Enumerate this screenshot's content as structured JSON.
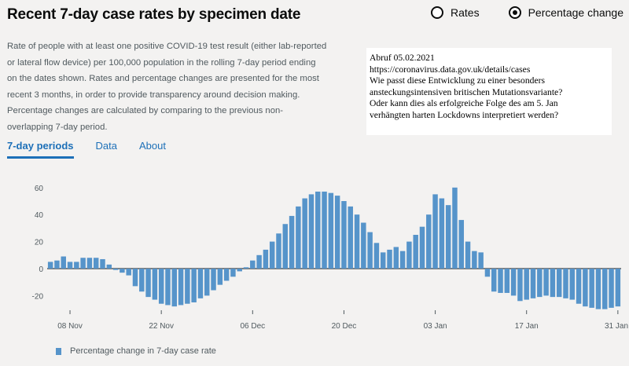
{
  "header": {
    "title": "Recent 7-day case rates by specimen date",
    "radio_options": [
      {
        "label": "Rates",
        "selected": false
      },
      {
        "label": "Percentage change",
        "selected": true
      }
    ]
  },
  "description": [
    "Rate of people with at least one positive COVID-19 test result (either lab-reported",
    "or lateral flow device) per 100,000 population in the rolling 7-day period ending",
    "on the dates shown. Rates and percentage changes are presented for the most",
    "recent 3 months, in order to provide transparency around decision making.",
    "Percentage changes are calculated by comparing to the previous non-",
    "overlapping 7-day period."
  ],
  "note": [
    "Abruf 05.02.2021",
    "https://coronavirus.data.gov.uk/details/cases",
    "Wie passt diese Entwicklung zu einer besonders",
    "ansteckungsintensiven britischen  Mutationsvariante?",
    "Oder kann dies als erfolgreiche Folge des am 5. Jan",
    "verhängten harten Lockdowns interpretiert werden?"
  ],
  "tabs": [
    {
      "label": "7-day periods",
      "active": true
    },
    {
      "label": "Data",
      "active": false
    },
    {
      "label": "About",
      "active": false
    }
  ],
  "colors": {
    "bar": "#5694ca",
    "accent": "#1d70b8"
  },
  "chart_data": {
    "type": "bar",
    "series": [
      {
        "name": "Percentage change in 7-day case rate"
      }
    ],
    "x_tick_labels": [
      "08 Nov",
      "22 Nov",
      "06 Dec",
      "20 Dec",
      "03 Jan",
      "17 Jan",
      "31 Jan"
    ],
    "y_tick_labels": [
      "60",
      "40",
      "20",
      "0",
      "-20"
    ],
    "ylim": [
      -30,
      62
    ],
    "grid": false,
    "legend": "bottom-left",
    "x": [
      "05 Nov",
      "06 Nov",
      "07 Nov",
      "08 Nov",
      "09 Nov",
      "10 Nov",
      "11 Nov",
      "12 Nov",
      "13 Nov",
      "14 Nov",
      "15 Nov",
      "16 Nov",
      "17 Nov",
      "18 Nov",
      "19 Nov",
      "20 Nov",
      "21 Nov",
      "22 Nov",
      "23 Nov",
      "24 Nov",
      "25 Nov",
      "26 Nov",
      "27 Nov",
      "28 Nov",
      "29 Nov",
      "30 Nov",
      "01 Dec",
      "02 Dec",
      "03 Dec",
      "04 Dec",
      "05 Dec",
      "06 Dec",
      "07 Dec",
      "08 Dec",
      "09 Dec",
      "10 Dec",
      "11 Dec",
      "12 Dec",
      "13 Dec",
      "14 Dec",
      "15 Dec",
      "16 Dec",
      "17 Dec",
      "18 Dec",
      "19 Dec",
      "20 Dec",
      "21 Dec",
      "22 Dec",
      "23 Dec",
      "24 Dec",
      "25 Dec",
      "26 Dec",
      "27 Dec",
      "28 Dec",
      "29 Dec",
      "30 Dec",
      "31 Dec",
      "01 Jan",
      "02 Jan",
      "03 Jan",
      "04 Jan",
      "05 Jan",
      "06 Jan",
      "07 Jan",
      "08 Jan",
      "09 Jan",
      "10 Jan",
      "11 Jan",
      "12 Jan",
      "13 Jan",
      "14 Jan",
      "15 Jan",
      "16 Jan",
      "17 Jan",
      "18 Jan",
      "19 Jan",
      "20 Jan",
      "21 Jan",
      "22 Jan",
      "23 Jan",
      "24 Jan",
      "25 Jan",
      "26 Jan",
      "27 Jan",
      "28 Jan",
      "29 Jan",
      "30 Jan",
      "31 Jan"
    ],
    "values": [
      5,
      6,
      9,
      5,
      5,
      8,
      8,
      8,
      7,
      3,
      -1,
      -3,
      -5,
      -13,
      -17,
      -21,
      -23,
      -26,
      -27,
      -28,
      -27,
      -26,
      -25,
      -22,
      -20,
      -16,
      -12,
      -9,
      -6,
      -2,
      1,
      6,
      10,
      14,
      20,
      26,
      33,
      39,
      46,
      52,
      55,
      57,
      57,
      56,
      54,
      50,
      46,
      40,
      34,
      27,
      19,
      12,
      14,
      16,
      13,
      20,
      25,
      31,
      40,
      55,
      52,
      47,
      60,
      36,
      20,
      13,
      12,
      -6,
      -17,
      -18,
      -18,
      -20,
      -24,
      -23,
      -22,
      -21,
      -20,
      -21,
      -21,
      -22,
      -23,
      -26,
      -28,
      -29,
      -30,
      -30,
      -29,
      -28
    ]
  }
}
